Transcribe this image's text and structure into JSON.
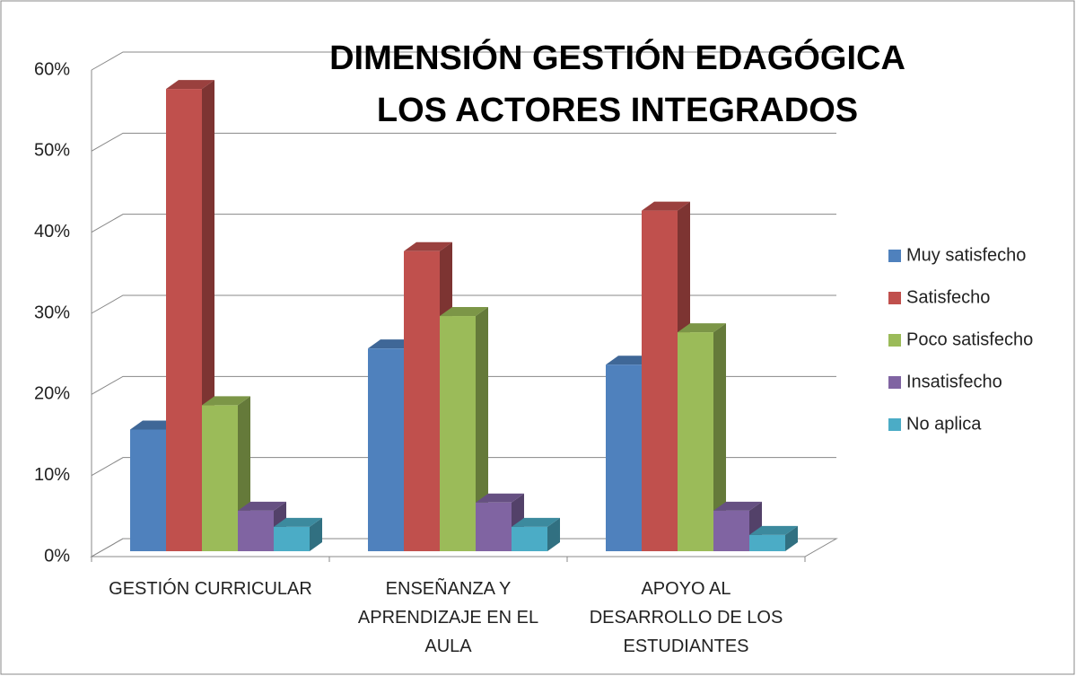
{
  "chart_data": {
    "type": "bar3d",
    "title": "DIMENSIÓN GESTIÓN EDAGÓGICA LOS ACTORES INTEGRADOS",
    "categories": [
      "GESTIÓN CURRICULAR",
      "ENSEÑANZA Y APRENDIZAJE EN EL AULA",
      "APOYO AL DESARROLLO DE LOS ESTUDIANTES"
    ],
    "series": [
      {
        "name": "Muy satisfecho",
        "color": "#4f81bd",
        "values": [
          15,
          25,
          23
        ]
      },
      {
        "name": "Satisfecho",
        "color": "#c0504d",
        "values": [
          57,
          37,
          42
        ]
      },
      {
        "name": "Poco satisfecho",
        "color": "#9bbb59",
        "values": [
          18,
          29,
          27
        ]
      },
      {
        "name": "Insatisfecho",
        "color": "#8064a2",
        "values": [
          5,
          6,
          5
        ]
      },
      {
        "name": "No aplica",
        "color": "#4bacc6",
        "values": [
          3,
          3,
          2
        ]
      }
    ],
    "ylim": [
      0,
      60
    ],
    "yticks": [
      {
        "value": 0,
        "label": "0%"
      },
      {
        "value": 10,
        "label": "10%"
      },
      {
        "value": 20,
        "label": "20%"
      },
      {
        "value": 30,
        "label": "30%"
      },
      {
        "value": 40,
        "label": "40%"
      },
      {
        "value": 50,
        "label": "50%"
      },
      {
        "value": 60,
        "label": "60%"
      }
    ],
    "grid": true,
    "legend": "right"
  }
}
